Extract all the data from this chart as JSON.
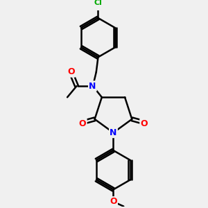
{
  "background_color": "#f0f0f0",
  "bond_color": "#000000",
  "bond_width": 1.8,
  "atom_colors": {
    "N": "#0000ff",
    "O": "#ff0000",
    "Cl": "#00aa00",
    "C": "#000000"
  },
  "figsize": [
    3.0,
    3.0
  ],
  "dpi": 100
}
